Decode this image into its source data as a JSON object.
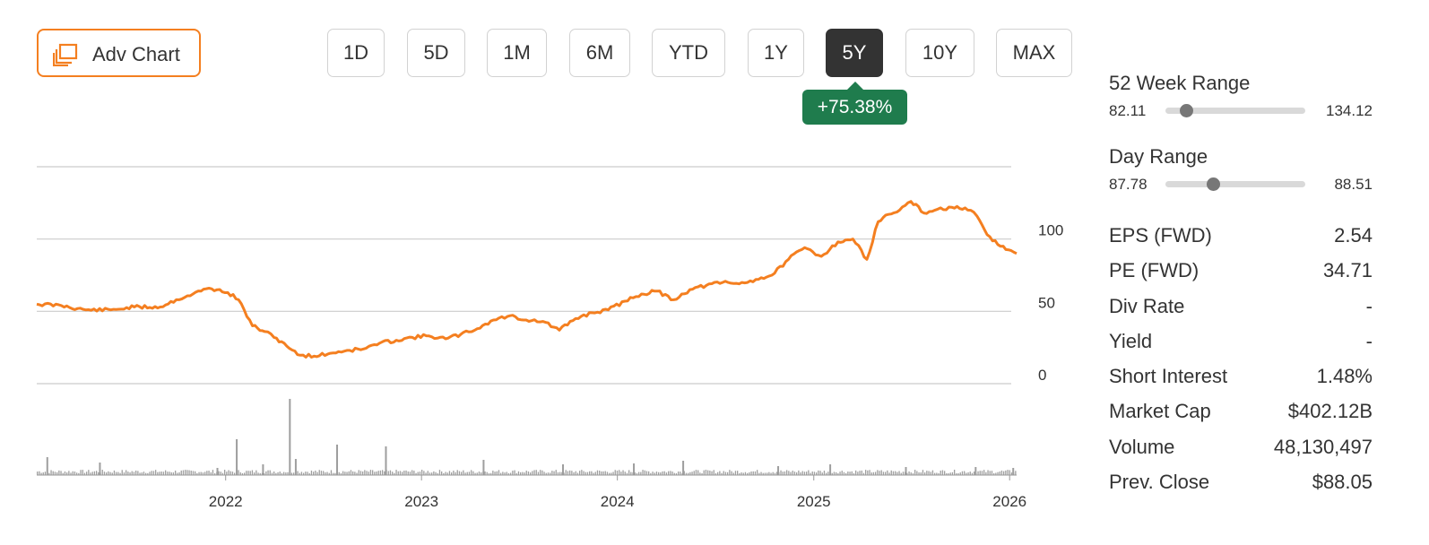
{
  "toolbar": {
    "adv_chart_label": "Adv Chart",
    "ranges": [
      {
        "label": "1D",
        "active": false
      },
      {
        "label": "5D",
        "active": false
      },
      {
        "label": "1M",
        "active": false
      },
      {
        "label": "6M",
        "active": false
      },
      {
        "label": "YTD",
        "active": false
      },
      {
        "label": "1Y",
        "active": false
      },
      {
        "label": "5Y",
        "active": true
      },
      {
        "label": "10Y",
        "active": false
      },
      {
        "label": "MAX",
        "active": false
      }
    ],
    "performance": "+75.38%"
  },
  "colors": {
    "accent": "#f47f20",
    "positive": "#1f7c4d",
    "active_range": "#333333",
    "volume": "#9e9e9e",
    "grid": "#cccccc"
  },
  "icons": {
    "adv_chart": "copy-layers-icon"
  },
  "chart_data": {
    "type": "line",
    "title": "",
    "xlabel": "",
    "ylabel": "",
    "x_ticks": [
      "2022",
      "2023",
      "2024",
      "2025",
      "2026"
    ],
    "y_ticks": [
      0,
      50,
      100
    ],
    "ylim": [
      0,
      150
    ],
    "xlim": [
      "2021-01-14",
      "2026-01-14"
    ],
    "grid": true,
    "series": [
      {
        "x": [
          "2021-01-14",
          "2021-03-01",
          "2021-04-15",
          "2021-06-01",
          "2021-07-15",
          "2021-09-01",
          "2021-10-01",
          "2021-11-01",
          "2021-12-01",
          "2022-01-05",
          "2022-01-25",
          "2022-02-20",
          "2022-03-15",
          "2022-04-01",
          "2022-04-20",
          "2022-05-15",
          "2022-06-15",
          "2022-07-15",
          "2022-08-15",
          "2022-09-15",
          "2022-10-15",
          "2022-11-15",
          "2022-12-15",
          "2023-01-15",
          "2023-02-15",
          "2023-03-15",
          "2023-04-15",
          "2023-05-15",
          "2023-06-15",
          "2023-07-15",
          "2023-08-15",
          "2023-09-15",
          "2023-10-15",
          "2023-11-15",
          "2023-12-15",
          "2024-01-15",
          "2024-02-15",
          "2024-03-15",
          "2024-04-15",
          "2024-05-15",
          "2024-06-15",
          "2024-07-15",
          "2024-08-15",
          "2024-09-15",
          "2024-10-15",
          "2024-11-15",
          "2024-12-15",
          "2025-01-15",
          "2025-02-15",
          "2025-03-15",
          "2025-04-10",
          "2025-05-01",
          "2025-05-20",
          "2025-06-10",
          "2025-07-01",
          "2025-07-25",
          "2025-08-15",
          "2025-09-15",
          "2025-10-15",
          "2025-11-01",
          "2025-11-20",
          "2025-12-15",
          "2026-01-14"
        ],
        "y": [
          55,
          54,
          51,
          51,
          53,
          53,
          58,
          62,
          66,
          63,
          58,
          40,
          36,
          32,
          28,
          20,
          19,
          21,
          23,
          24,
          28,
          30,
          32,
          33,
          31,
          34,
          38,
          44,
          47,
          44,
          43,
          37,
          45,
          49,
          51,
          57,
          62,
          64,
          58,
          65,
          68,
          70,
          69,
          72,
          75,
          86,
          94,
          88,
          98,
          100,
          86,
          112,
          117,
          120,
          126,
          118,
          120,
          122,
          120,
          116,
          103,
          95,
          90
        ]
      }
    ],
    "volume": {
      "x": [
        "2021-02-01",
        "2021-05-10",
        "2021-12-15",
        "2022-01-20",
        "2022-03-10",
        "2022-04-29",
        "2022-05-10",
        "2022-07-26",
        "2022-10-25",
        "2023-04-25",
        "2023-09-20",
        "2024-01-30",
        "2024-05-01",
        "2024-10-25",
        "2025-01-30",
        "2025-06-20",
        "2025-10-28",
        "2026-01-06"
      ],
      "y": [
        20,
        14,
        8,
        40,
        12,
        85,
        18,
        34,
        32,
        17,
        12,
        13,
        16,
        10,
        12,
        9,
        9,
        8
      ],
      "baseline": 4
    }
  },
  "stats": {
    "week52": {
      "title": "52 Week Range",
      "low": "82.11",
      "high": "134.12",
      "fraction": 0.15
    },
    "day": {
      "title": "Day Range",
      "low": "87.78",
      "high": "88.51",
      "fraction": 0.34
    },
    "rows": [
      {
        "label": "EPS (FWD)",
        "value": "2.54"
      },
      {
        "label": "PE (FWD)",
        "value": "34.71"
      },
      {
        "label": "Div Rate",
        "value": "-"
      },
      {
        "label": "Yield",
        "value": "-"
      },
      {
        "label": "Short Interest",
        "value": "1.48%"
      },
      {
        "label": "Market Cap",
        "value": "$402.12B"
      },
      {
        "label": "Volume",
        "value": "48,130,497"
      },
      {
        "label": "Prev. Close",
        "value": "$88.05"
      }
    ]
  }
}
